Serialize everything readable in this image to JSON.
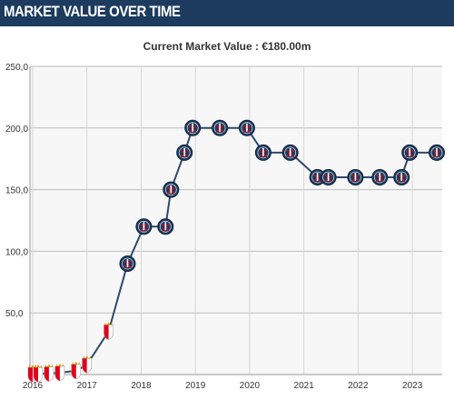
{
  "header": {
    "title": "MARKET VALUE OVER TIME"
  },
  "subtitle": "Current Market Value : €180.00m",
  "colors": {
    "header_bg": "#1d3b5e",
    "line": "#2e4a6b",
    "plot_bg": "#f7f7f7",
    "grid": "#bdbdbd",
    "psg_badge": "#1d3b5e",
    "monaco_badge": "#e2001a"
  },
  "chart_data": {
    "type": "line",
    "title": "",
    "xlabel": "",
    "ylabel": "",
    "xlim": [
      2015.95,
      2023.55
    ],
    "ylim": [
      0,
      250
    ],
    "y_ticks": [
      "250,0",
      "200,0",
      "150,0",
      "100,0",
      "50,0"
    ],
    "y_tick_values": [
      250,
      200,
      150,
      100,
      50
    ],
    "x_ticks": [
      "2016",
      "2017",
      "2018",
      "2019",
      "2020",
      "2021",
      "2022",
      "2023"
    ],
    "x_tick_values": [
      2016,
      2017,
      2018,
      2019,
      2020,
      2021,
      2022,
      2023
    ],
    "grid": true,
    "series": [
      {
        "points": [
          {
            "x": 2016.0,
            "y": 0.5,
            "club": "monaco-badge-icon"
          },
          {
            "x": 2016.1,
            "y": 0.5,
            "club": "monaco-badge-icon"
          },
          {
            "x": 2016.3,
            "y": 1,
            "club": "monaco-badge-icon"
          },
          {
            "x": 2016.5,
            "y": 1.5,
            "club": "monaco-badge-icon"
          },
          {
            "x": 2016.8,
            "y": 3,
            "club": "monaco-badge-icon"
          },
          {
            "x": 2017.0,
            "y": 8,
            "club": "monaco-badge-icon"
          },
          {
            "x": 2017.4,
            "y": 35,
            "club": "monaco-badge-icon"
          },
          {
            "x": 2017.75,
            "y": 90,
            "club": "psg-badge-icon"
          },
          {
            "x": 2018.05,
            "y": 120,
            "club": "psg-badge-icon"
          },
          {
            "x": 2018.45,
            "y": 120,
            "club": "psg-badge-icon"
          },
          {
            "x": 2018.55,
            "y": 150,
            "club": "psg-badge-icon"
          },
          {
            "x": 2018.8,
            "y": 180,
            "club": "psg-badge-icon"
          },
          {
            "x": 2018.95,
            "y": 200,
            "club": "psg-badge-icon"
          },
          {
            "x": 2019.45,
            "y": 200,
            "club": "psg-badge-icon"
          },
          {
            "x": 2019.95,
            "y": 200,
            "club": "psg-badge-icon"
          },
          {
            "x": 2020.25,
            "y": 180,
            "club": "psg-badge-icon"
          },
          {
            "x": 2020.75,
            "y": 180,
            "club": "psg-badge-icon"
          },
          {
            "x": 2021.25,
            "y": 160,
            "club": "psg-badge-icon"
          },
          {
            "x": 2021.45,
            "y": 160,
            "club": "psg-badge-icon"
          },
          {
            "x": 2021.95,
            "y": 160,
            "club": "psg-badge-icon"
          },
          {
            "x": 2022.4,
            "y": 160,
            "club": "psg-badge-icon"
          },
          {
            "x": 2022.8,
            "y": 160,
            "club": "psg-badge-icon"
          },
          {
            "x": 2022.95,
            "y": 180,
            "club": "psg-badge-icon"
          },
          {
            "x": 2023.45,
            "y": 180,
            "club": "psg-badge-icon"
          }
        ]
      }
    ]
  }
}
